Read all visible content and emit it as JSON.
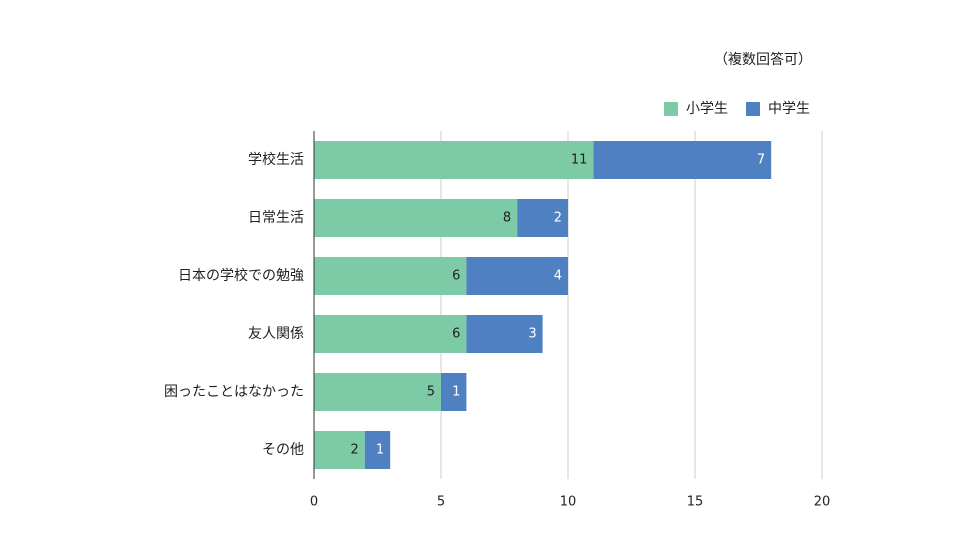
{
  "chart_data": {
    "type": "bar",
    "orientation": "horizontal",
    "stacked": true,
    "annotation": "（複数回答可）",
    "categories": [
      "学校生活",
      "日常生活",
      "日本の学校での勉強",
      "友人関係",
      "困ったことはなかった",
      "その他"
    ],
    "series": [
      {
        "name": "小学生",
        "color": "#7ccaa6",
        "values": [
          11,
          8,
          6,
          6,
          5,
          2
        ]
      },
      {
        "name": "中学生",
        "color": "#4f81c2",
        "values": [
          7,
          2,
          4,
          3,
          1,
          1
        ]
      }
    ],
    "xlim": [
      0,
      20
    ],
    "xticks": [
      0,
      5,
      10,
      15,
      20
    ],
    "grid": true,
    "legend": "top-right"
  }
}
